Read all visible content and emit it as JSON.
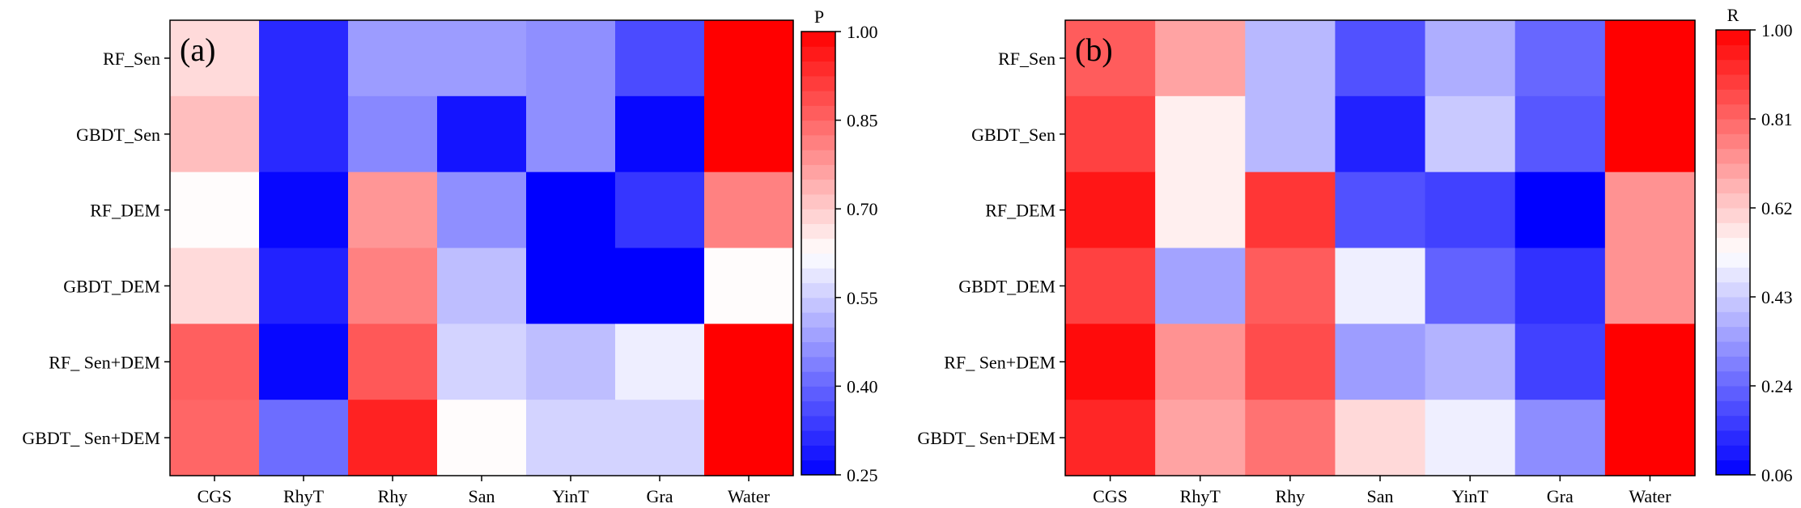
{
  "chart_data": [
    {
      "type": "heatmap",
      "panel_label": "(a)",
      "colorbar_title": "P",
      "rows": [
        "RF_Sen",
        "GBDT_Sen",
        "RF_DEM",
        "GBDT_DEM",
        "RF_ Sen+DEM",
        "GBDT_ Sen+DEM"
      ],
      "columns": [
        "CGS",
        "RhyT",
        "Rhy",
        "San",
        "YinT",
        "Gra",
        "Water"
      ],
      "values": [
        [
          0.68,
          0.31,
          0.48,
          0.48,
          0.46,
          0.36,
          1.0
        ],
        [
          0.72,
          0.31,
          0.45,
          0.28,
          0.46,
          0.26,
          1.0
        ],
        [
          0.63,
          0.26,
          0.78,
          0.46,
          0.25,
          0.33,
          0.81
        ],
        [
          0.68,
          0.3,
          0.81,
          0.53,
          0.25,
          0.25,
          0.63
        ],
        [
          0.86,
          0.26,
          0.87,
          0.56,
          0.53,
          0.6,
          1.0
        ],
        [
          0.85,
          0.41,
          0.95,
          0.63,
          0.56,
          0.56,
          1.0
        ]
      ],
      "vmin": 0.25,
      "vmax": 1.0,
      "colorbar_ticks": [
        "1.00",
        "0.85",
        "0.70",
        "0.55",
        "0.40",
        "0.25"
      ],
      "colormap": "bwr",
      "colors": {
        "low": "#0000ff",
        "mid": "#ffffff",
        "high": "#ff0000"
      }
    },
    {
      "type": "heatmap",
      "panel_label": "(b)",
      "colorbar_title": "R",
      "rows": [
        "RF_Sen",
        "GBDT_Sen",
        "RF_DEM",
        "GBDT_DEM",
        "RF_ Sen+DEM",
        "GBDT_ Sen+DEM"
      ],
      "columns": [
        "CGS",
        "RhyT",
        "Rhy",
        "San",
        "YinT",
        "Gra",
        "Water"
      ],
      "values": [
        [
          0.83,
          0.7,
          0.4,
          0.21,
          0.38,
          0.25,
          1.0
        ],
        [
          0.88,
          0.56,
          0.4,
          0.12,
          0.43,
          0.22,
          1.0
        ],
        [
          0.96,
          0.56,
          0.9,
          0.21,
          0.18,
          0.06,
          0.73
        ],
        [
          0.88,
          0.36,
          0.83,
          0.5,
          0.24,
          0.15,
          0.73
        ],
        [
          0.98,
          0.73,
          0.86,
          0.35,
          0.39,
          0.18,
          1.0
        ],
        [
          0.93,
          0.7,
          0.79,
          0.6,
          0.5,
          0.32,
          1.0
        ]
      ],
      "vmin": 0.06,
      "vmax": 1.0,
      "colorbar_ticks": [
        "1.00",
        "0.81",
        "0.62",
        "0.43",
        "0.24",
        "0.06"
      ],
      "colormap": "bwr",
      "colors": {
        "low": "#0000ff",
        "mid": "#ffffff",
        "high": "#ff0000"
      }
    }
  ]
}
